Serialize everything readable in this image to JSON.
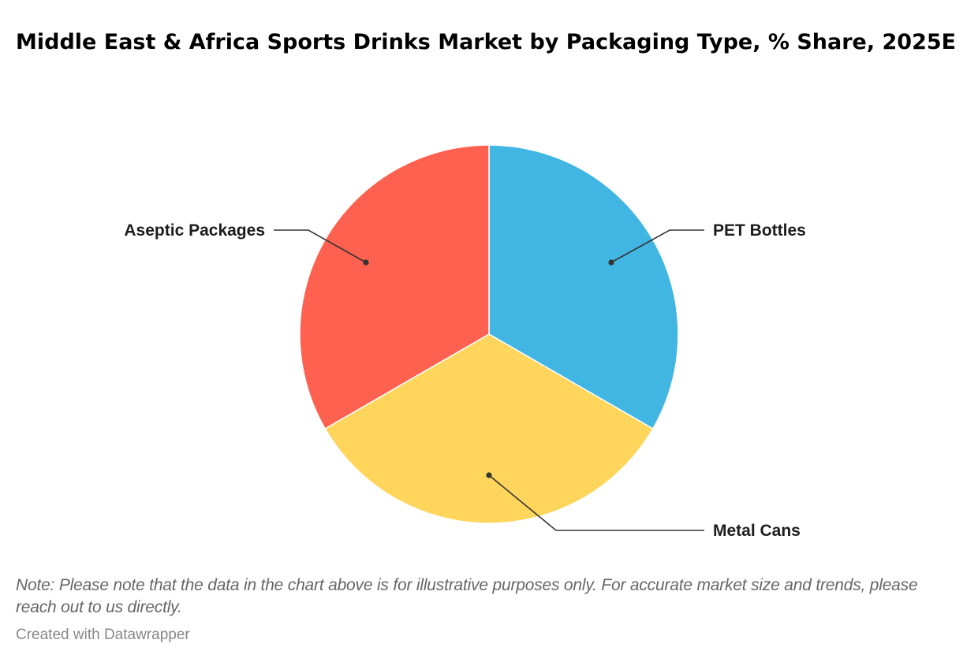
{
  "title": "Middle East & Africa Sports Drinks Market by Packaging Type, % Share, 2025E",
  "note": "Note: Please note that the data in the chart above is for illustrative purposes only. For accurate market size and trends, please reach out to us directly.",
  "credit": "Created with Datawrapper",
  "chart_data": {
    "type": "pie",
    "title": "Middle East & Africa Sports Drinks Market by Packaging Type, % Share, 2025E",
    "categories": [
      "PET Bottles",
      "Metal Cans",
      "Aseptic Packages"
    ],
    "values": [
      33.3,
      33.3,
      33.3
    ],
    "colors": [
      "#41B6E3",
      "#FFD55C",
      "#FF6150"
    ],
    "start_angle_deg": 0,
    "direction": "clockwise",
    "legend_position": "none (direct labels with leader lines)",
    "xlabel": "",
    "ylabel": "",
    "grid": false
  },
  "labels": {
    "pet": "PET Bottles",
    "metal": "Metal Cans",
    "aseptic": "Aseptic Packages"
  }
}
